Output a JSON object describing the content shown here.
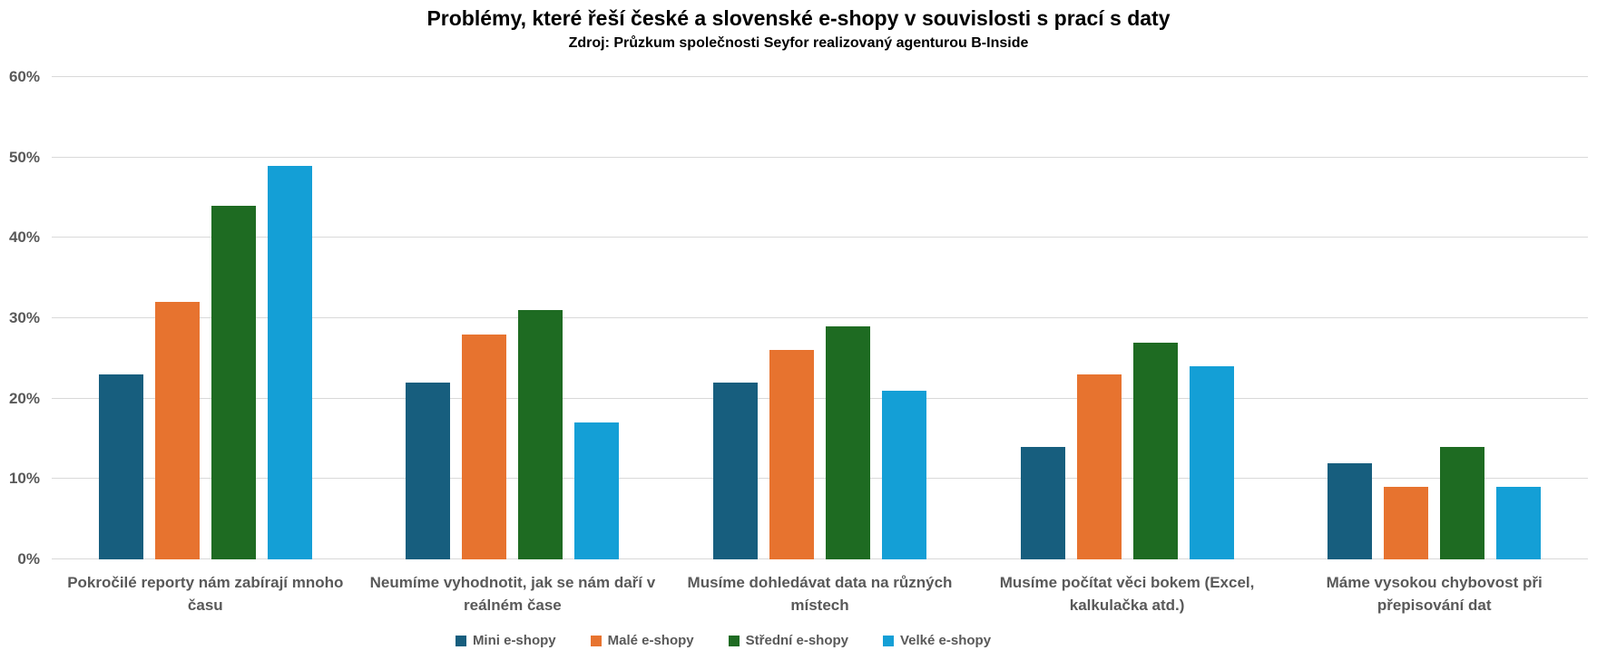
{
  "chart_data": {
    "type": "bar",
    "title": "Problémy, které řeší české a slovenské e-shopy v souvislosti s prací s daty",
    "subtitle": "Zdroj: Průzkum společnosti Seyfor realizovaný agenturou B-Inside",
    "categories": [
      "Pokročilé reporty nám zabírají mnoho času",
      "Neumíme vyhodnotit, jak se nám daří v reálném čase",
      "Musíme dohledávat data na různých místech",
      "Musíme počítat věci bokem (Excel, kalkulačka atd.)",
      "Máme vysokou chybovost při přepisování dat"
    ],
    "series": [
      {
        "name": "Mini e-shopy",
        "color": "#175E7E",
        "values": [
          23,
          22,
          22,
          14,
          12
        ]
      },
      {
        "name": "Malé e-shopy",
        "color": "#E7732F",
        "values": [
          32,
          28,
          26,
          23,
          9
        ]
      },
      {
        "name": "Střední e-shopy",
        "color": "#1E6B22",
        "values": [
          44,
          31,
          29,
          27,
          14
        ]
      },
      {
        "name": "Velké e-shopy",
        "color": "#149FD6",
        "values": [
          49,
          17,
          21,
          24,
          9
        ]
      }
    ],
    "y_axis": {
      "min": 0,
      "max": 60,
      "step": 10,
      "tick_labels": [
        "0%",
        "10%",
        "20%",
        "30%",
        "40%",
        "50%",
        "60%"
      ]
    },
    "grid": true,
    "legend_position": "bottom",
    "colors": {
      "grid": "#D9D9D9",
      "axis_text": "#595959",
      "title_text": "#000000",
      "background": "#FFFFFF"
    }
  }
}
